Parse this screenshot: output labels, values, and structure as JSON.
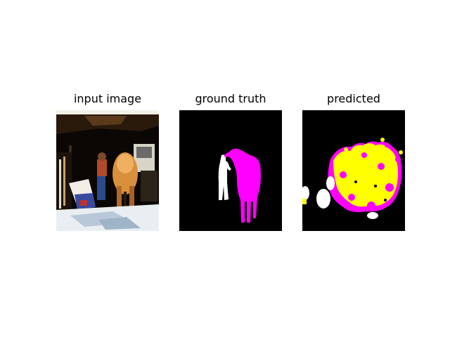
{
  "figure": {
    "panels": [
      {
        "title": "input image"
      },
      {
        "title": "ground truth"
      },
      {
        "title": "predicted"
      }
    ],
    "colors": {
      "background": "#000000",
      "class_person": "#ffffff",
      "class_horse": "#ff00ff",
      "class_predicted": "#ffff00"
    }
  }
}
